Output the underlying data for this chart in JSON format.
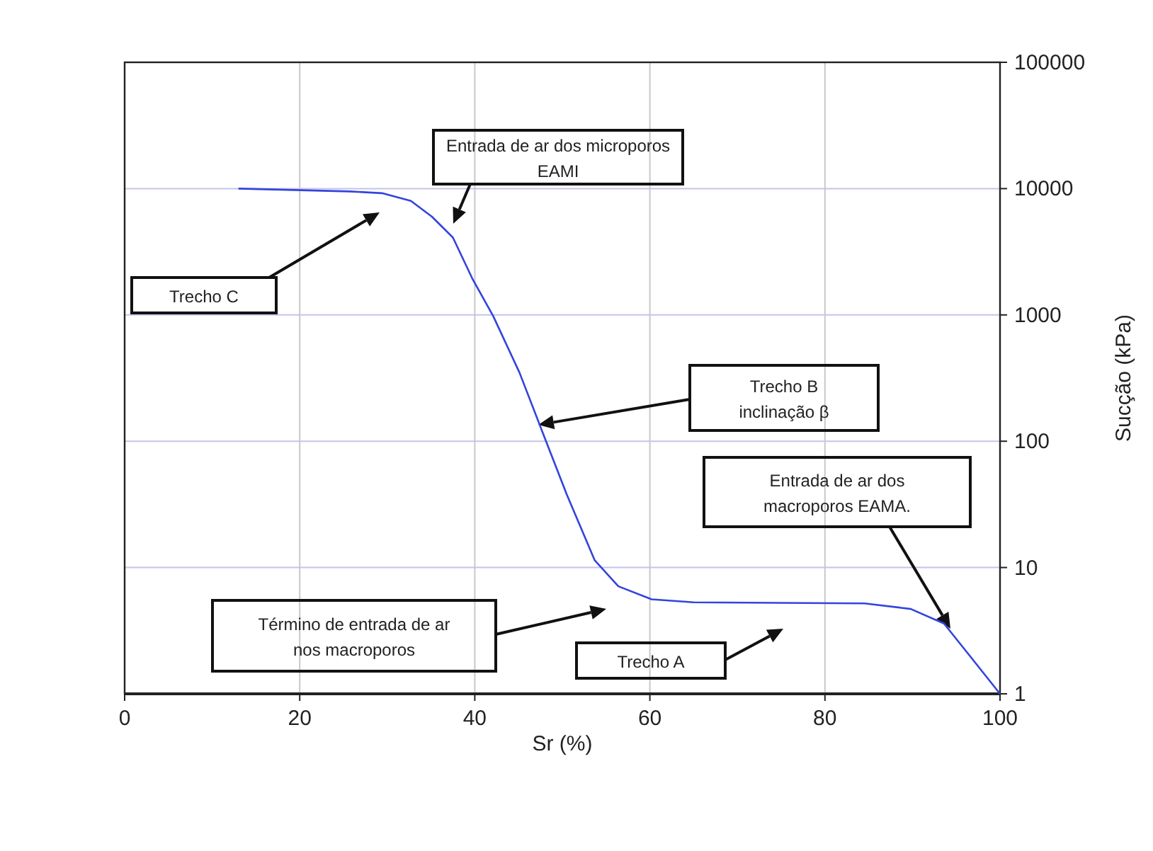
{
  "chart_data": {
    "type": "line",
    "xlabel": "Sr (%)",
    "ylabel": "Sucção (kPa)",
    "log": "y",
    "grid": true,
    "marker": "none",
    "line_style": "solid",
    "xlim": [
      0,
      100
    ],
    "xticks": [
      0,
      20,
      40,
      60,
      80,
      100
    ],
    "ylim": [
      1,
      100000
    ],
    "yticks": [
      1,
      10,
      100,
      1000,
      10000,
      100000
    ],
    "series": [
      {
        "color": "#3344dd",
        "x": [
          13,
          25.7,
          29.4,
          32.7,
          35.1,
          37.5,
          39.7,
          42.1,
          45.1,
          47.5,
          50.5,
          53.7,
          56.4,
          60.2,
          65,
          84.5,
          89.8,
          93.6,
          96.3,
          100
        ],
        "values": [
          10000,
          9500,
          9200,
          8000,
          6000,
          4100,
          1950,
          980,
          350,
          130,
          38,
          11.4,
          7.1,
          5.6,
          5.3,
          5.2,
          4.7,
          3.6,
          2.1,
          1
        ]
      }
    ],
    "annotations": [
      "Entrada de ar dos microporos\nEAMI",
      "Trecho C",
      "Trecho B\ninclinação β",
      "Entrada de ar dos\nmacroporos  EAMA.",
      "Término de entrada de ar\nnos macroporos",
      "Trecho A"
    ]
  }
}
